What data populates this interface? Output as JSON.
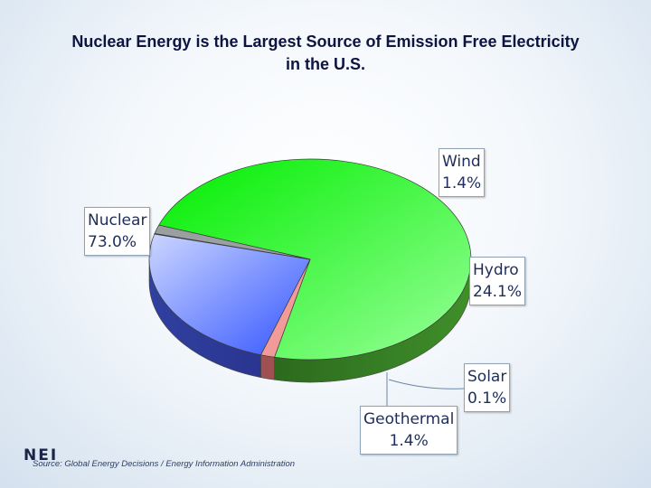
{
  "chart_data": {
    "type": "pie",
    "title_lines": [
      "Nuclear Energy is the Largest Source of Emission Free Electricity",
      "in the U.S."
    ],
    "slices": [
      {
        "name": "Nuclear",
        "value": 73.0,
        "label": "73.0%",
        "color": "#22ee22",
        "side": "#2f7a22"
      },
      {
        "name": "Wind",
        "value": 1.4,
        "label": "1.4%",
        "color": "#f09a9a",
        "side": "#a05050"
      },
      {
        "name": "Hydro",
        "value": 24.1,
        "label": "24.1%",
        "color": "#5577ff",
        "side": "#3344aa"
      },
      {
        "name": "Solar",
        "value": 0.1,
        "label": "0.1%",
        "color": "#e8e8f0",
        "side": "#777788"
      },
      {
        "name": "Geothermal",
        "value": 1.4,
        "label": "1.4%",
        "color": "#9aa0a0",
        "side": "#505858"
      }
    ],
    "legend": "none",
    "source": "Source: Global Energy Decisions / Energy Information Administration"
  },
  "logo_text": "NEI"
}
